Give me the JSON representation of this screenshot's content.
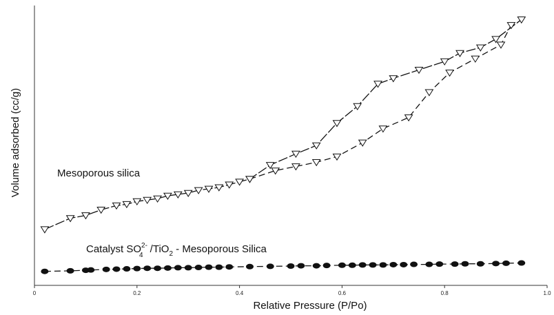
{
  "chart_data": {
    "type": "scatter",
    "xlabel": "Relative Pressure (P/Po)",
    "ylabel": "Volume adsorbed (cc/g)",
    "xlim": [
      0,
      1.0
    ],
    "ylim": [
      0,
      100
    ],
    "x_ticks": [
      "0",
      "0.2",
      "0.4",
      "0.6",
      "0.8",
      "1.0"
    ],
    "grid": false,
    "annotations": {
      "mesoporous": "Mesoporous silica",
      "catalyst_prefix": "Catalyst  SO",
      "catalyst_sub": "4",
      "catalyst_sup": "2-",
      "catalyst_mid": " /TiO",
      "catalyst_sub2": "2",
      "catalyst_suffix": " - Mesoporous Silica"
    },
    "series": [
      {
        "id": "mesoporous-adsorption",
        "marker": "triangle-down-open",
        "line": "solid",
        "x": [
          0.02,
          0.07,
          0.1,
          0.13,
          0.16,
          0.18,
          0.2,
          0.22,
          0.24,
          0.26,
          0.28,
          0.3,
          0.32,
          0.34,
          0.36,
          0.38,
          0.4,
          0.42,
          0.46,
          0.51,
          0.55,
          0.59,
          0.63,
          0.67,
          0.7,
          0.75,
          0.8,
          0.83,
          0.87,
          0.9,
          0.95
        ],
        "y": [
          20,
          24,
          25,
          27,
          28.5,
          29,
          30,
          30.5,
          31,
          32,
          32.5,
          33,
          34,
          34.5,
          35,
          36,
          37,
          38,
          43,
          47,
          50,
          58,
          64,
          72,
          74,
          77,
          80,
          83,
          85,
          88,
          95
        ]
      },
      {
        "id": "mesoporous-desorption",
        "marker": "triangle-down-open",
        "line": "dashed",
        "x": [
          0.42,
          0.47,
          0.51,
          0.55,
          0.59,
          0.64,
          0.68,
          0.73,
          0.77,
          0.81,
          0.86,
          0.91,
          0.93
        ],
        "y": [
          38,
          41,
          42.5,
          44,
          46,
          51,
          56,
          60,
          69,
          76,
          81,
          86,
          93
        ]
      },
      {
        "id": "catalyst",
        "marker": "circle-filled",
        "line": "dashed",
        "x": [
          0.02,
          0.07,
          0.1,
          0.11,
          0.14,
          0.16,
          0.18,
          0.2,
          0.22,
          0.24,
          0.26,
          0.28,
          0.3,
          0.32,
          0.34,
          0.36,
          0.38,
          0.42,
          0.46,
          0.5,
          0.52,
          0.55,
          0.57,
          0.6,
          0.62,
          0.64,
          0.66,
          0.68,
          0.7,
          0.72,
          0.74,
          0.77,
          0.79,
          0.82,
          0.84,
          0.87,
          0.9,
          0.92,
          0.95
        ],
        "y": [
          5,
          5.2,
          5.4,
          5.5,
          5.7,
          5.8,
          5.9,
          6,
          6.1,
          6.1,
          6.2,
          6.3,
          6.3,
          6.4,
          6.5,
          6.5,
          6.6,
          6.7,
          6.8,
          6.9,
          7,
          7,
          7.1,
          7.2,
          7.2,
          7.3,
          7.3,
          7.3,
          7.4,
          7.4,
          7.5,
          7.5,
          7.6,
          7.6,
          7.7,
          7.7,
          7.8,
          7.9,
          8
        ]
      }
    ]
  }
}
